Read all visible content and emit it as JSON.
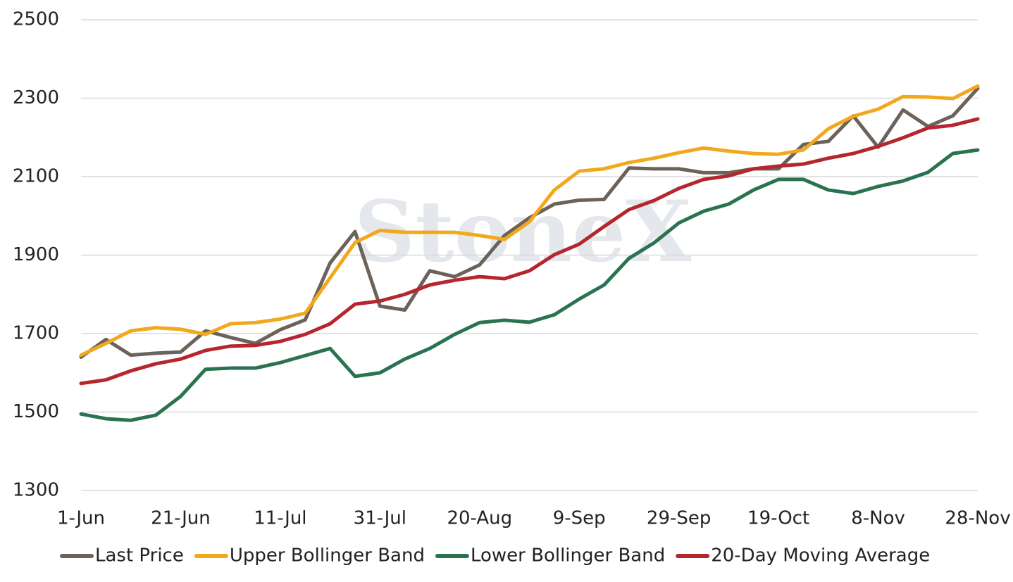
{
  "chart_data": {
    "type": "line",
    "watermark": "StoneX",
    "categories": [
      "1-Jun",
      null,
      null,
      null,
      "21-Jun",
      null,
      null,
      null,
      "11-Jul",
      null,
      null,
      null,
      "31-Jul",
      null,
      null,
      null,
      "20-Aug",
      null,
      null,
      null,
      "9-Sep",
      null,
      null,
      null,
      "29-Sep",
      null,
      null,
      null,
      "19-Oct",
      null,
      null,
      null,
      "8-Nov",
      null,
      null,
      null,
      "28-Nov"
    ],
    "series": [
      {
        "name": "Last Price",
        "color": "#6b625a",
        "values": [
          1640,
          1685,
          1645,
          1650,
          1653,
          1707,
          1690,
          1675,
          1710,
          1735,
          1880,
          1960,
          1770,
          1760,
          1860,
          1845,
          1875,
          1950,
          1995,
          2030,
          2040,
          2042,
          2122,
          2120,
          2120,
          2110,
          2110,
          2120,
          2120,
          2182,
          2190,
          2255,
          2175,
          2270,
          2228,
          2255,
          2325
        ]
      },
      {
        "name": "Upper Bollinger Band",
        "color": "#f2a81d",
        "values": [
          1645,
          1675,
          1707,
          1715,
          1711,
          1698,
          1725,
          1728,
          1737,
          1752,
          1842,
          1932,
          1963,
          1958,
          1958,
          1958,
          1950,
          1940,
          1985,
          2066,
          2114,
          2120,
          2136,
          2147,
          2161,
          2173,
          2165,
          2159,
          2157,
          2168,
          2222,
          2254,
          2272,
          2304,
          2303,
          2299,
          2331
        ]
      },
      {
        "name": "Lower Bollinger Band",
        "color": "#2a7350",
        "values": [
          1495,
          1483,
          1479,
          1492,
          1540,
          1609,
          1612,
          1612,
          1626,
          1644,
          1662,
          1591,
          1600,
          1635,
          1662,
          1698,
          1728,
          1734,
          1729,
          1748,
          1788,
          1824,
          1892,
          1931,
          1982,
          2012,
          2030,
          2066,
          2093,
          2093,
          2066,
          2057,
          2075,
          2089,
          2111,
          2159,
          2168
        ]
      },
      {
        "name": "20-Day Moving Average",
        "color": "#b5262e",
        "values": [
          1573,
          1582,
          1605,
          1623,
          1635,
          1657,
          1668,
          1670,
          1680,
          1698,
          1725,
          1775,
          1783,
          1800,
          1824,
          1836,
          1845,
          1840,
          1860,
          1901,
          1928,
          1973,
          2016,
          2039,
          2070,
          2093,
          2102,
          2120,
          2127,
          2132,
          2147,
          2159,
          2177,
          2199,
          2224,
          2231,
          2247
        ]
      }
    ],
    "ylim": [
      1300,
      2500
    ],
    "yticks": [
      1300,
      1500,
      1700,
      1900,
      2100,
      2300,
      2500
    ],
    "grid": true,
    "legend": "bottom"
  }
}
